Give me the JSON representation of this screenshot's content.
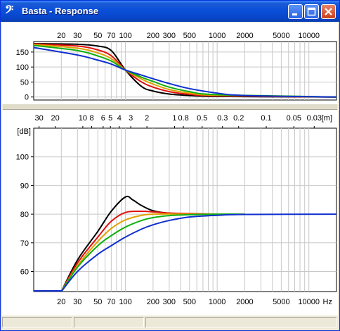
{
  "window": {
    "title": "Basta - Response",
    "app_icon": "bass-clef-icon"
  },
  "top_chart": {
    "x_ticks": [
      "20",
      "30",
      "50",
      "70",
      "100",
      "200",
      "300",
      "500",
      "1000",
      "2000",
      "5000",
      "10000"
    ],
    "y_ticks": [
      "150",
      "100",
      "50",
      "0"
    ]
  },
  "wavelength_axis": {
    "labels": [
      "30",
      "20",
      "10",
      "8",
      "6",
      "5",
      "4",
      "3",
      "2",
      "1",
      "0.8",
      "0.5",
      "0.3",
      "0.2",
      "0.1",
      "0.05",
      "0.03"
    ],
    "unit": "[m]"
  },
  "bottom_chart": {
    "y_unit": "[dB]",
    "y_ticks": [
      "100",
      "90",
      "80",
      "70",
      "60"
    ],
    "x_ticks": [
      "20",
      "30",
      "50",
      "70",
      "100",
      "200",
      "300",
      "500",
      "1000",
      "2000",
      "5000",
      "10000"
    ],
    "x_unit": "Hz"
  },
  "chart_data": [
    {
      "type": "line",
      "x_scale": "log",
      "xlim": [
        10,
        20000
      ],
      "ylim": [
        -10,
        185
      ],
      "series": [
        {
          "color": "#000000",
          "x": [
            10,
            30,
            50,
            70,
            100,
            150,
            200,
            300,
            500,
            1000,
            20000
          ],
          "y": [
            178,
            176,
            170,
            155,
            90,
            35,
            20,
            10,
            5,
            2,
            0
          ]
        },
        {
          "color": "#E01010",
          "x": [
            10,
            30,
            50,
            70,
            100,
            150,
            200,
            300,
            500,
            1000,
            20000
          ],
          "y": [
            177,
            170,
            157,
            138,
            90,
            50,
            33,
            18,
            9,
            4,
            0
          ]
        },
        {
          "color": "#E0A000",
          "x": [
            10,
            30,
            50,
            70,
            100,
            150,
            200,
            300,
            500,
            1000,
            20000
          ],
          "y": [
            175,
            163,
            147,
            128,
            90,
            60,
            43,
            25,
            13,
            6,
            0
          ]
        },
        {
          "color": "#10B010",
          "x": [
            10,
            30,
            50,
            70,
            100,
            150,
            200,
            300,
            500,
            1000,
            20000
          ],
          "y": [
            172,
            155,
            137,
            120,
            90,
            66,
            52,
            33,
            18,
            8,
            0
          ]
        },
        {
          "color": "#1030D0",
          "x": [
            10,
            30,
            50,
            70,
            100,
            150,
            200,
            300,
            500,
            1000,
            2000,
            20000
          ],
          "y": [
            165,
            140,
            123,
            110,
            90,
            73,
            61,
            45,
            28,
            13,
            5,
            0
          ]
        }
      ]
    },
    {
      "type": "line",
      "x_scale": "log",
      "xlim": [
        10,
        20000
      ],
      "ylim": [
        53,
        110
      ],
      "series": [
        {
          "color": "#000000",
          "x": [
            20,
            30,
            50,
            70,
            100,
            120,
            150,
            200,
            300,
            500,
            1000
          ],
          "y": [
            53,
            64,
            74,
            81,
            86,
            85,
            83,
            81.2,
            80.3,
            80,
            80
          ]
        },
        {
          "color": "#E01010",
          "x": [
            20,
            30,
            50,
            70,
            100,
            150,
            200,
            300,
            500,
            1000
          ],
          "y": [
            53,
            63,
            72,
            77.5,
            80.6,
            81,
            80.8,
            80.4,
            80.2,
            80
          ]
        },
        {
          "color": "#E0A000",
          "x": [
            20,
            30,
            50,
            70,
            100,
            150,
            200,
            300,
            500,
            1000,
            2000
          ],
          "y": [
            53,
            62,
            70.5,
            75,
            78,
            79.6,
            80,
            80.1,
            80,
            80,
            80
          ]
        },
        {
          "color": "#10B010",
          "x": [
            20,
            30,
            50,
            70,
            100,
            150,
            200,
            300,
            500,
            1000,
            2000
          ],
          "y": [
            53,
            61.5,
            69,
            72.5,
            75.5,
            77.8,
            78.8,
            79.5,
            79.8,
            80,
            80
          ]
        },
        {
          "color": "#1030D0",
          "x": [
            20,
            30,
            50,
            70,
            100,
            150,
            200,
            300,
            500,
            1000,
            2000,
            20000
          ],
          "y": [
            53,
            60,
            66,
            69,
            72,
            74.8,
            76.3,
            77.8,
            79,
            79.6,
            79.9,
            80
          ]
        }
      ]
    }
  ]
}
